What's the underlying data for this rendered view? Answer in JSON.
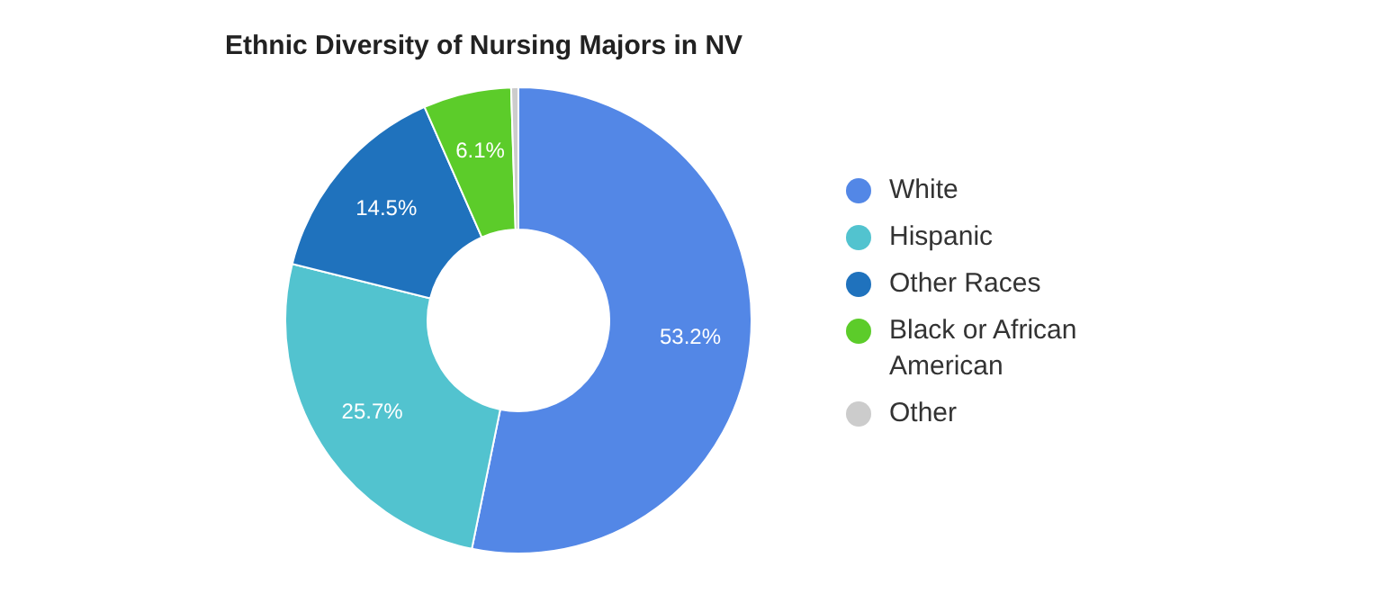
{
  "chart_data": {
    "type": "donut",
    "title": "Ethnic Diversity of Nursing Majors in NV",
    "categories": [
      "White",
      "Hispanic",
      "Other Races",
      "Black or African American",
      "Other"
    ],
    "values": [
      53.2,
      25.7,
      14.5,
      6.1,
      0.5
    ],
    "colors": [
      "#5387e6",
      "#52c3cf",
      "#1f72bd",
      "#5ccc2a",
      "#cccccc"
    ],
    "value_labels": [
      "53.2%",
      "25.7%",
      "14.5%",
      "6.1%",
      null
    ],
    "legend": "right"
  }
}
